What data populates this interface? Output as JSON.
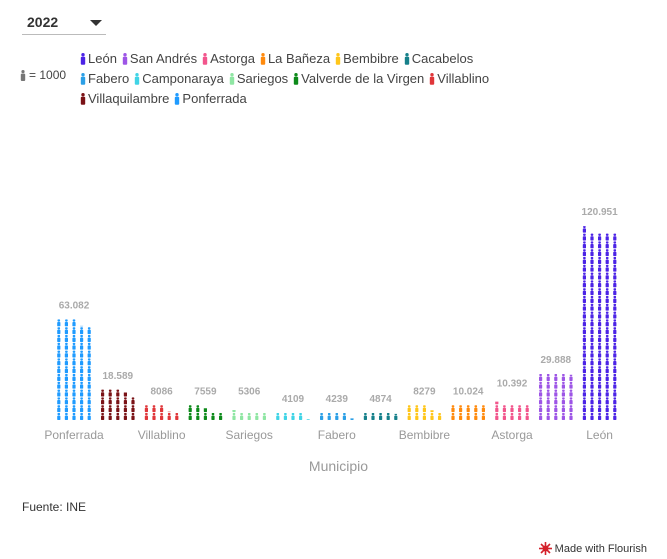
{
  "controls": {
    "year_selected": "2022"
  },
  "legend": {
    "scale_label": "= 1000",
    "items": [
      {
        "label": "León",
        "color": "#4b23e6"
      },
      {
        "label": "San Andrés",
        "color": "#9d55e6"
      },
      {
        "label": "Astorga",
        "color": "#f2558c"
      },
      {
        "label": "La Bañeza",
        "color": "#ff8a0d"
      },
      {
        "label": "Bembibre",
        "color": "#ffc61a"
      },
      {
        "label": "Cacabelos",
        "color": "#16808a"
      },
      {
        "label": "Fabero",
        "color": "#2b9fe6"
      },
      {
        "label": "Camponaraya",
        "color": "#40d4e6"
      },
      {
        "label": "Sariegos",
        "color": "#8fe6a3"
      },
      {
        "label": "Valverde de la Virgen",
        "color": "#0d8a1a"
      },
      {
        "label": "Villablino",
        "color": "#e0363a"
      },
      {
        "label": "Villaquilambre",
        "color": "#7a1216"
      },
      {
        "label": "Ponferrada",
        "color": "#1f9bff"
      }
    ]
  },
  "chart_data": {
    "type": "pictogram",
    "unit_per_icon": 1000,
    "xlabel": "Municipio",
    "categories": [
      "Ponferrada",
      "Villaquilambre",
      "Villablino",
      "Valverde de la Virgen",
      "Sariegos",
      "Camponaraya",
      "Fabero",
      "Cacabelos",
      "Bembibre",
      "La Bañeza",
      "Astorga",
      "San Andrés",
      "León"
    ],
    "values": [
      63082,
      18589,
      8086,
      7559,
      5306,
      4109,
      4239,
      4874,
      8279,
      10024,
      10392,
      29888,
      120951
    ],
    "value_labels": [
      "63.082",
      "18.589",
      "8086",
      "7559",
      "5306",
      "4109",
      "4239",
      "4874",
      "8279",
      "10.024",
      "10.392",
      "29.888",
      "120.951"
    ],
    "shown_tick_labels": [
      "Ponferrada",
      "",
      "Villablino",
      "",
      "Sariegos",
      "",
      "Fabero",
      "",
      "Bembibre",
      "",
      "Astorga",
      "",
      "León"
    ],
    "colors": [
      "#1f9bff",
      "#7a1216",
      "#e0363a",
      "#0d8a1a",
      "#8fe6a3",
      "#40d4e6",
      "#2b9fe6",
      "#16808a",
      "#ffc61a",
      "#ff8a0d",
      "#f2558c",
      "#9d55e6",
      "#4b23e6"
    ]
  },
  "footer": {
    "source": "Fuente: INE",
    "credit": "Made with Flourish"
  }
}
